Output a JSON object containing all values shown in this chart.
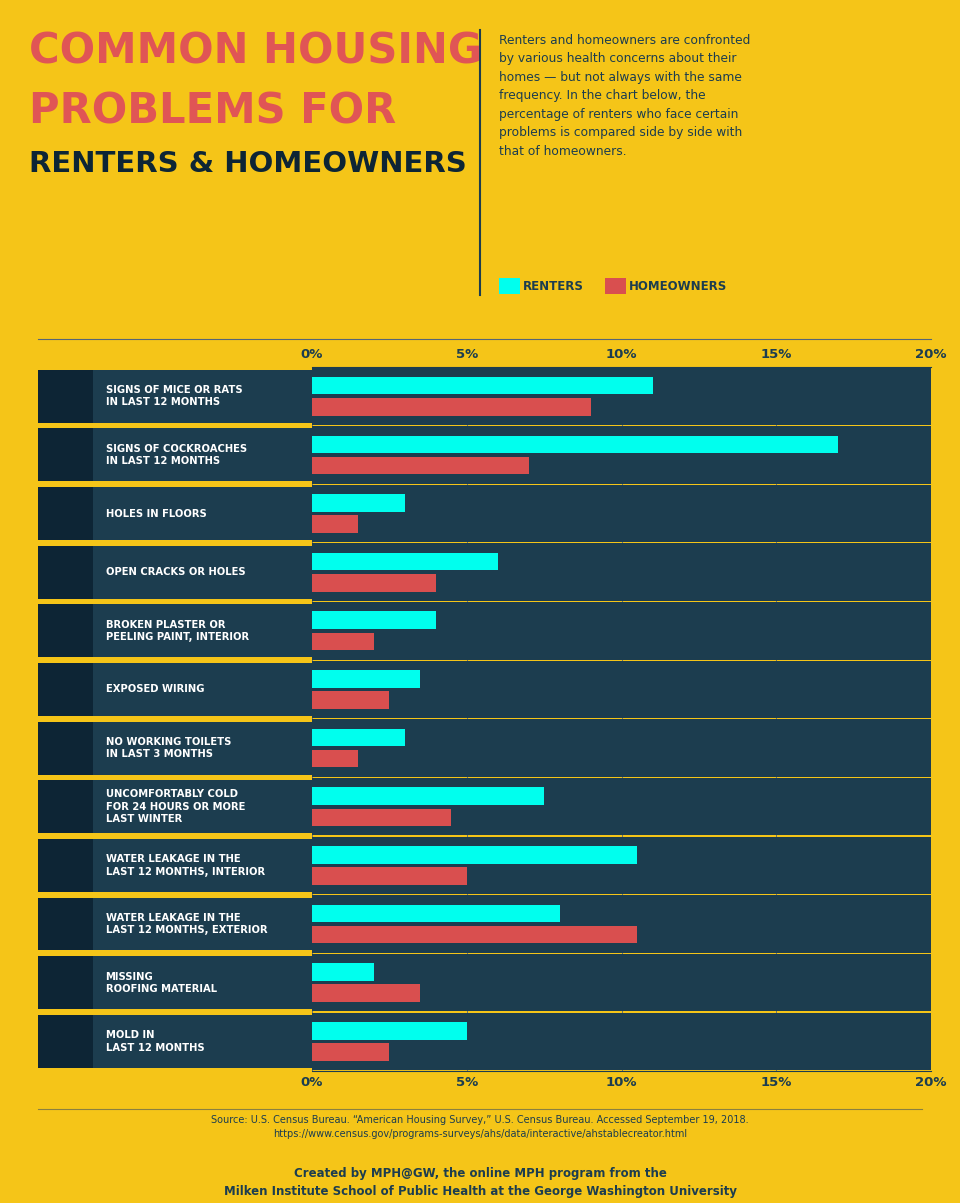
{
  "background_color": "#F5C518",
  "bar_bg_color": "#1C3D4F",
  "icon_bg_color": "#0D2535",
  "renter_color": "#00FFEE",
  "homeowner_color": "#D94F4F",
  "label_color": "#FFFFFF",
  "axis_label_color": "#1C3D4F",
  "title1_color": "#E05555",
  "title2_color": "#E05555",
  "title3_color": "#0D2535",
  "subtitle_color": "#1C3D4F",
  "categories": [
    "SIGNS OF MICE OR RATS\nIN LAST 12 MONTHS",
    "SIGNS OF COCKROACHES\nIN LAST 12 MONTHS",
    "HOLES IN FLOORS",
    "OPEN CRACKS OR HOLES",
    "BROKEN PLASTER OR\nPEELING PAINT, INTERIOR",
    "EXPOSED WIRING",
    "NO WORKING TOILETS\nIN LAST 3 MONTHS",
    "UNCOMFORTABLY COLD\nFOR 24 HOURS OR MORE\nLAST WINTER",
    "WATER LEAKAGE IN THE\nLAST 12 MONTHS, INTERIOR",
    "WATER LEAKAGE IN THE\nLAST 12 MONTHS, EXTERIOR",
    "MISSING\nROOFING MATERIAL",
    "MOLD IN\nLAST 12 MONTHS"
  ],
  "renters": [
    11.0,
    17.0,
    3.0,
    6.0,
    4.0,
    3.5,
    3.0,
    7.5,
    10.5,
    8.0,
    2.0,
    5.0
  ],
  "homeowners": [
    9.0,
    7.0,
    1.5,
    4.0,
    2.0,
    2.5,
    1.5,
    4.5,
    5.0,
    10.5,
    3.5,
    2.5
  ],
  "xlim": [
    0,
    20
  ],
  "xticks": [
    0,
    5,
    10,
    15,
    20
  ],
  "xticklabels": [
    "0%",
    "5%",
    "10%",
    "15%",
    "20%"
  ],
  "subtitle": "Renters and homeowners are confronted\nby various health concerns about their\nhomes — but not always with the same\nfrequency. In the chart below, the\npercentage of renters who face certain\nproblems is compared side by side with\nthat of homeowners.",
  "legend_renters": "RENTERS",
  "legend_homeowners": "HOMEOWNERS",
  "source_text": "Source: U.S. Census Bureau. “American Housing Survey,” U.S. Census Bureau. Accessed September 19, 2018.\nhttps://www.census.gov/programs-surveys/ahs/data/interactive/ahstablecreator.html",
  "credit_text": "Created by MPH@GW, the online MPH program from the\nMilken Institute School of Public Health at the George Washington University"
}
